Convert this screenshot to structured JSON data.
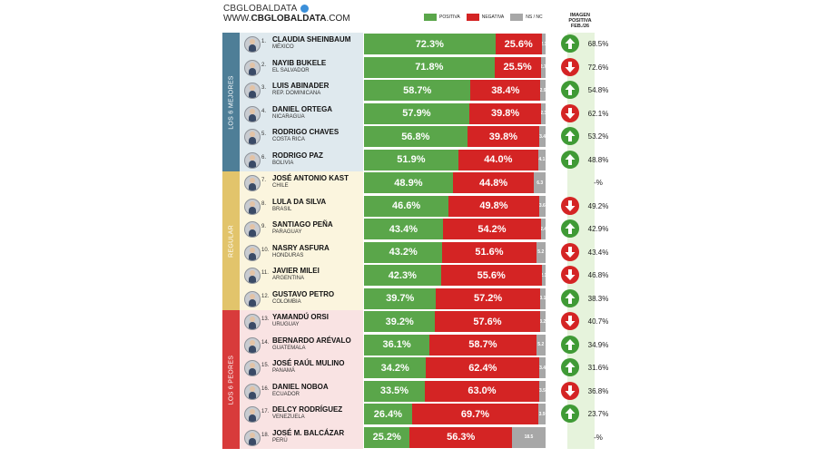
{
  "brand": {
    "line1": "CBGLOBALDATA",
    "line2_prefix": "WWW.",
    "line2_bold": "CBGLOBALDATA",
    "line2_suffix": ".COM"
  },
  "legend": [
    {
      "label": "POSITIVA",
      "color": "#5aa64a"
    },
    {
      "label": "NEGATIVA",
      "color": "#d42424"
    },
    {
      "label": "NS / NC",
      "color": "#a7a7a7"
    }
  ],
  "image_header": [
    "IMAGEN",
    "POSITIVA",
    "FEB./26"
  ],
  "groups": [
    {
      "label": "LOS 6 MEJORES",
      "color": "#4e7e97",
      "bg": "#dfe9ee",
      "rows": 6
    },
    {
      "label": "REGULAR",
      "color": "#e2c46b",
      "bg": "#fbf5de",
      "rows": 6
    },
    {
      "label": "LOS 6 PEORES",
      "color": "#d83b3b",
      "bg": "#f9e3e3",
      "rows": 6
    }
  ],
  "colors": {
    "up": "#3f9a35",
    "down": "#d42424"
  },
  "chart_data": {
    "type": "bar",
    "stacked": true,
    "orientation": "horizontal",
    "series_names": [
      "POSITIVA",
      "NEGATIVA",
      "NS / NC"
    ],
    "rows": [
      {
        "rank": "1.",
        "name": "CLAUDIA SHEINBAUM",
        "country": "MÉXICO",
        "pos": 72.3,
        "neg": 25.6,
        "ns": 2.1,
        "pos_label": "72.3%",
        "neg_label": "25.6%",
        "ns_label": "2.1",
        "trend": "up",
        "image": "68.5%"
      },
      {
        "rank": "2.",
        "name": "NAYIB BUKELE",
        "country": "EL SALVADOR",
        "pos": 71.8,
        "neg": 25.5,
        "ns": 2.7,
        "pos_label": "71.8%",
        "neg_label": "25.5%",
        "ns_label": "2.7",
        "trend": "down",
        "image": "72.6%"
      },
      {
        "rank": "3.",
        "name": "LUIS ABINADER",
        "country": "REP. DOMINICANA",
        "pos": 58.7,
        "neg": 38.4,
        "ns": 2.9,
        "pos_label": "58.7%",
        "neg_label": "38.4%",
        "ns_label": "2.9",
        "trend": "up",
        "image": "54.8%"
      },
      {
        "rank": "4.",
        "name": "DANIEL ORTEGA",
        "country": "NICARAGUA",
        "pos": 57.9,
        "neg": 39.8,
        "ns": 2.3,
        "pos_label": "57.9%",
        "neg_label": "39.8%",
        "ns_label": "2.3",
        "trend": "down",
        "image": "62.1%"
      },
      {
        "rank": "5.",
        "name": "RODRIGO CHAVES",
        "country": "COSTA RICA",
        "pos": 56.8,
        "neg": 39.8,
        "ns": 3.4,
        "pos_label": "56.8%",
        "neg_label": "39.8%",
        "ns_label": "3.4",
        "trend": "up",
        "image": "53.2%"
      },
      {
        "rank": "6.",
        "name": "RODRIGO PAZ",
        "country": "BOLIVIA",
        "pos": 51.9,
        "neg": 44.0,
        "ns": 4.1,
        "pos_label": "51.9%",
        "neg_label": "44.0%",
        "ns_label": "4.1",
        "trend": "up",
        "image": "48.8%"
      },
      {
        "rank": "7.",
        "name": "JOSÉ ANTONIO KAST",
        "country": "CHILE",
        "pos": 48.9,
        "neg": 44.8,
        "ns": 6.3,
        "pos_label": "48.9%",
        "neg_label": "44.8%",
        "ns_label": "6.3",
        "trend": "none",
        "image": "-%"
      },
      {
        "rank": "8.",
        "name": "LULA DA SILVA",
        "country": "BRASIL",
        "pos": 46.6,
        "neg": 49.8,
        "ns": 3.6,
        "pos_label": "46.6%",
        "neg_label": "49.8%",
        "ns_label": "3.6",
        "trend": "down",
        "image": "49.2%"
      },
      {
        "rank": "9.",
        "name": "SANTIAGO PEÑA",
        "country": "PARAGUAY",
        "pos": 43.4,
        "neg": 54.2,
        "ns": 2.4,
        "pos_label": "43.4%",
        "neg_label": "54.2%",
        "ns_label": "2.4",
        "trend": "up",
        "image": "42.9%"
      },
      {
        "rank": "10.",
        "name": "NASRY ASFURA",
        "country": "HONDURAS",
        "pos": 43.2,
        "neg": 51.6,
        "ns": 5.2,
        "pos_label": "43.2%",
        "neg_label": "51.6%",
        "ns_label": "5.2",
        "trend": "down",
        "image": "43.4%"
      },
      {
        "rank": "11.",
        "name": "JAVIER MILEI",
        "country": "ARGENTINA",
        "pos": 42.3,
        "neg": 55.6,
        "ns": 2.1,
        "pos_label": "42.3%",
        "neg_label": "55.6%",
        "ns_label": "2.1",
        "trend": "down",
        "image": "46.8%"
      },
      {
        "rank": "12.",
        "name": "GUSTAVO PETRO",
        "country": "COLOMBIA",
        "pos": 39.7,
        "neg": 57.2,
        "ns": 3.1,
        "pos_label": "39.7%",
        "neg_label": "57.2%",
        "ns_label": "3.1",
        "trend": "up",
        "image": "38.3%"
      },
      {
        "rank": "13.",
        "name": "YAMANDÚ ORSI",
        "country": "URUGUAY",
        "pos": 39.2,
        "neg": 57.6,
        "ns": 3.2,
        "pos_label": "39.2%",
        "neg_label": "57.6%",
        "ns_label": "3.2",
        "trend": "down",
        "image": "40.7%"
      },
      {
        "rank": "14.",
        "name": "BERNARDO ARÉVALO",
        "country": "GUATEMALA",
        "pos": 36.1,
        "neg": 58.7,
        "ns": 5.2,
        "pos_label": "36.1%",
        "neg_label": "58.7%",
        "ns_label": "5.2",
        "trend": "up",
        "image": "34.9%"
      },
      {
        "rank": "15.",
        "name": "JOSÉ RAÚL MULINO",
        "country": "PANAMÁ",
        "pos": 34.2,
        "neg": 62.4,
        "ns": 3.4,
        "pos_label": "34.2%",
        "neg_label": "62.4%",
        "ns_label": "3.4",
        "trend": "up",
        "image": "31.6%"
      },
      {
        "rank": "16.",
        "name": "DANIEL NOBOA",
        "country": "ECUADOR",
        "pos": 33.5,
        "neg": 63.0,
        "ns": 3.5,
        "pos_label": "33.5%",
        "neg_label": "63.0%",
        "ns_label": "3.5",
        "trend": "down",
        "image": "36.8%"
      },
      {
        "rank": "17.",
        "name": "DELCY RODRÍGUEZ",
        "country": "VENEZUELA",
        "pos": 26.4,
        "neg": 69.7,
        "ns": 3.9,
        "pos_label": "26.4%",
        "neg_label": "69.7%",
        "ns_label": "3.9",
        "trend": "up",
        "image": "23.7%"
      },
      {
        "rank": "18.",
        "name": "JOSÉ M. BALCÁZAR",
        "country": "PERÚ",
        "pos": 25.2,
        "neg": 56.3,
        "ns": 18.5,
        "pos_label": "25.2%",
        "neg_label": "56.3%",
        "ns_label": "18.5",
        "trend": "none",
        "image": "-%"
      }
    ]
  }
}
